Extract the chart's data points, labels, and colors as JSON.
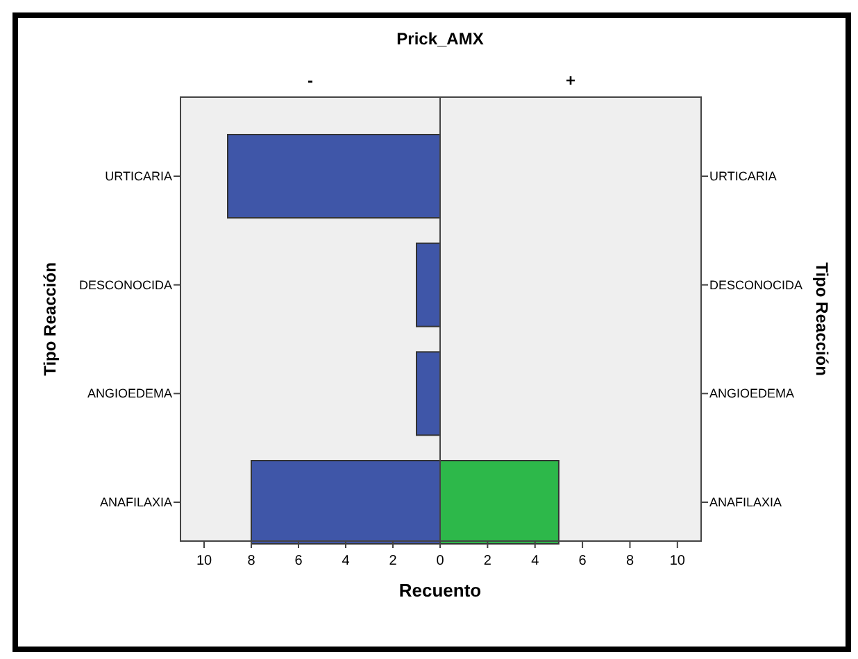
{
  "chart_data": [
    {
      "type": "bar",
      "orientation": "horizontal",
      "title": "-",
      "annotations": [
        "Prick_AMX"
      ],
      "xlabel": "Recuento",
      "ylabel": "Tipo Reacción",
      "categories": [
        "URTICARIA",
        "DESCONOCIDA",
        "ANGIOEDEMA",
        "ANAFILAXIA"
      ],
      "values": [
        9,
        1,
        1,
        8
      ],
      "color": "#3f56a8",
      "xlim": [
        11,
        0
      ],
      "xticks": [
        10,
        8,
        6,
        4,
        2,
        0
      ],
      "grid": false
    },
    {
      "type": "bar",
      "orientation": "horizontal",
      "title": "+",
      "ylabel": "Tipo Reacción",
      "categories": [
        "URTICARIA",
        "DESCONOCIDA",
        "ANGIOEDEMA",
        "ANAFILAXIA"
      ],
      "values": [
        0,
        0,
        0,
        5
      ],
      "color": "#2db84a",
      "xlim": [
        0,
        11
      ],
      "xticks": [
        {
          "value": 0,
          "label": null
        },
        2,
        4,
        6,
        8,
        10
      ],
      "grid": false
    }
  ]
}
